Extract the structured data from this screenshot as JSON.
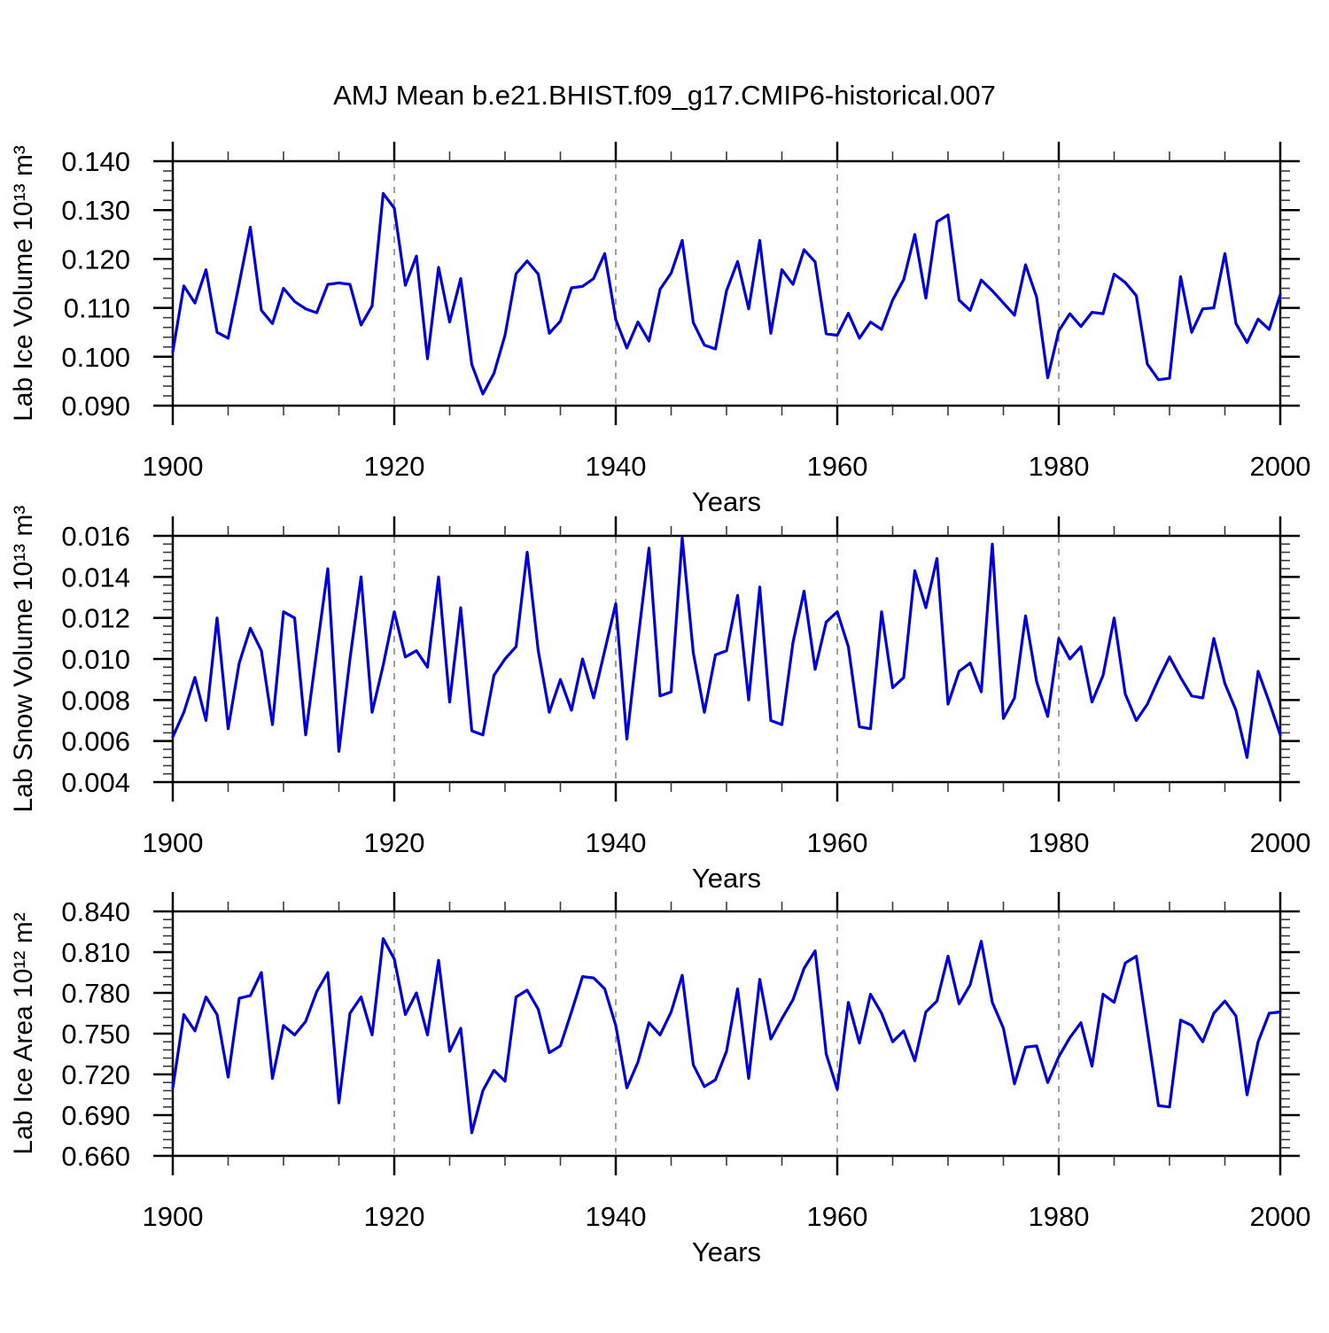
{
  "title": "AMJ Mean b.e21.BHIST.f09_g17.CMIP6-historical.007",
  "line_color": "#0000dd",
  "axis_color": "#000000",
  "dashed_gridline_color": "#808080",
  "x_axis": {
    "label": "Years",
    "tick_years": [
      1900,
      1920,
      1940,
      1960,
      1980,
      2000
    ],
    "tick_labels": [
      "1900",
      "1920",
      "1940",
      "1960",
      "1980",
      "2000"
    ],
    "minor_tick_step_years": 5,
    "dashed_gridline_years": [
      1920,
      1940,
      1960,
      1980
    ],
    "range": [
      1900,
      2000
    ]
  },
  "chart_data": [
    {
      "type": "line",
      "title": "AMJ Mean b.e21.BHIST.f09_g17.CMIP6-historical.007",
      "ylabel": "Lab Ice Volume 10¹³ m³",
      "xlabel": "Years",
      "ylim": [
        0.09,
        0.14
      ],
      "y_ticks": [
        0.09,
        0.1,
        0.11,
        0.12,
        0.13,
        0.14
      ],
      "y_tick_labels": [
        "0.090",
        "0.100",
        "0.110",
        "0.120",
        "0.130",
        "0.140"
      ],
      "y_minor_step": 0.002,
      "grid": false,
      "legend": "none",
      "x": {
        "start": 1900,
        "end": 2000,
        "step": 1
      },
      "values": [
        0.101,
        0.1145,
        0.111,
        0.1178,
        0.105,
        0.1038,
        0.115,
        0.1265,
        0.1095,
        0.1068,
        0.114,
        0.1113,
        0.1098,
        0.109,
        0.1148,
        0.1151,
        0.1148,
        0.1065,
        0.1104,
        0.1334,
        0.1304,
        0.1146,
        0.1206,
        0.0996,
        0.1183,
        0.1071,
        0.116,
        0.0984,
        0.0924,
        0.0966,
        0.1044,
        0.117,
        0.1196,
        0.1169,
        0.1048,
        0.1073,
        0.1141,
        0.1144,
        0.116,
        0.1211,
        0.1076,
        0.1018,
        0.1071,
        0.1032,
        0.1138,
        0.1171,
        0.1238,
        0.107,
        0.1024,
        0.1016,
        0.1135,
        0.1195,
        0.1098,
        0.1238,
        0.1048,
        0.1178,
        0.1148,
        0.1219,
        0.1194,
        0.1047,
        0.1044,
        0.1089,
        0.1038,
        0.1071,
        0.1056,
        0.1116,
        0.1158,
        0.125,
        0.112,
        0.1276,
        0.129,
        0.1116,
        0.1095,
        0.1157,
        0.1135,
        0.111,
        0.1085,
        0.1188,
        0.1122,
        0.0957,
        0.1053,
        0.1088,
        0.1062,
        0.1091,
        0.1088,
        0.1169,
        0.1152,
        0.1125,
        0.0985,
        0.0953,
        0.0956,
        0.1164,
        0.105,
        0.1098,
        0.11,
        0.1211,
        0.1068,
        0.1029,
        0.1077,
        0.1056,
        0.1127
      ]
    },
    {
      "type": "line",
      "title": "",
      "ylabel": "Lab Snow Volume 10¹³ m³",
      "xlabel": "Years",
      "ylim": [
        0.004,
        0.016
      ],
      "y_ticks": [
        0.004,
        0.006,
        0.008,
        0.01,
        0.012,
        0.014,
        0.016
      ],
      "y_tick_labels": [
        "0.004",
        "0.006",
        "0.008",
        "0.010",
        "0.012",
        "0.014",
        "0.016"
      ],
      "y_minor_step": 0.0004,
      "grid": false,
      "legend": "none",
      "x": {
        "start": 1900,
        "end": 2000,
        "step": 1
      },
      "values": [
        0.0062,
        0.0074,
        0.0091,
        0.007,
        0.012,
        0.0066,
        0.0098,
        0.0115,
        0.0104,
        0.0068,
        0.0123,
        0.012,
        0.0063,
        0.0104,
        0.0144,
        0.0055,
        0.01,
        0.014,
        0.0074,
        0.0097,
        0.0123,
        0.0101,
        0.0104,
        0.0096,
        0.014,
        0.0079,
        0.0125,
        0.0065,
        0.0063,
        0.0092,
        0.01,
        0.0106,
        0.0152,
        0.0104,
        0.0074,
        0.009,
        0.0075,
        0.01,
        0.0081,
        0.0104,
        0.0127,
        0.0061,
        0.0109,
        0.0154,
        0.0082,
        0.0084,
        0.0159,
        0.0103,
        0.0074,
        0.0102,
        0.0104,
        0.0131,
        0.008,
        0.0135,
        0.007,
        0.0068,
        0.0108,
        0.0133,
        0.0095,
        0.0118,
        0.0123,
        0.0106,
        0.0067,
        0.0066,
        0.0123,
        0.0086,
        0.0091,
        0.0143,
        0.0125,
        0.0149,
        0.0078,
        0.0094,
        0.0098,
        0.0084,
        0.0156,
        0.0071,
        0.0081,
        0.0121,
        0.0089,
        0.0072,
        0.011,
        0.01,
        0.0106,
        0.0079,
        0.0092,
        0.012,
        0.0083,
        0.007,
        0.0078,
        0.009,
        0.0101,
        0.0091,
        0.0082,
        0.0081,
        0.011,
        0.0088,
        0.0075,
        0.0052,
        0.0094,
        0.0079,
        0.0063
      ]
    },
    {
      "type": "line",
      "title": "",
      "ylabel": "Lab Ice Area 10¹² m²",
      "xlabel": "Years",
      "ylim": [
        0.66,
        0.84
      ],
      "y_ticks": [
        0.66,
        0.69,
        0.72,
        0.75,
        0.78,
        0.81,
        0.84
      ],
      "y_tick_labels": [
        "0.660",
        "0.690",
        "0.720",
        "0.750",
        "0.780",
        "0.810",
        "0.840"
      ],
      "y_minor_step": 0.006,
      "grid": false,
      "legend": "none",
      "x": {
        "start": 1900,
        "end": 2000,
        "step": 1
      },
      "values": [
        0.71,
        0.764,
        0.752,
        0.777,
        0.764,
        0.718,
        0.776,
        0.778,
        0.795,
        0.717,
        0.756,
        0.749,
        0.759,
        0.781,
        0.795,
        0.699,
        0.765,
        0.777,
        0.749,
        0.82,
        0.805,
        0.764,
        0.78,
        0.749,
        0.804,
        0.737,
        0.754,
        0.677,
        0.708,
        0.723,
        0.715,
        0.777,
        0.782,
        0.768,
        0.736,
        0.741,
        0.766,
        0.792,
        0.791,
        0.783,
        0.756,
        0.71,
        0.729,
        0.758,
        0.749,
        0.766,
        0.793,
        0.727,
        0.711,
        0.716,
        0.737,
        0.783,
        0.717,
        0.79,
        0.746,
        0.761,
        0.775,
        0.798,
        0.811,
        0.735,
        0.709,
        0.773,
        0.743,
        0.779,
        0.765,
        0.744,
        0.752,
        0.73,
        0.766,
        0.774,
        0.807,
        0.772,
        0.786,
        0.818,
        0.773,
        0.754,
        0.713,
        0.74,
        0.741,
        0.714,
        0.733,
        0.747,
        0.758,
        0.726,
        0.779,
        0.773,
        0.802,
        0.807,
        0.752,
        0.697,
        0.696,
        0.76,
        0.756,
        0.744,
        0.765,
        0.774,
        0.763,
        0.705,
        0.744,
        0.765,
        0.766
      ]
    }
  ]
}
